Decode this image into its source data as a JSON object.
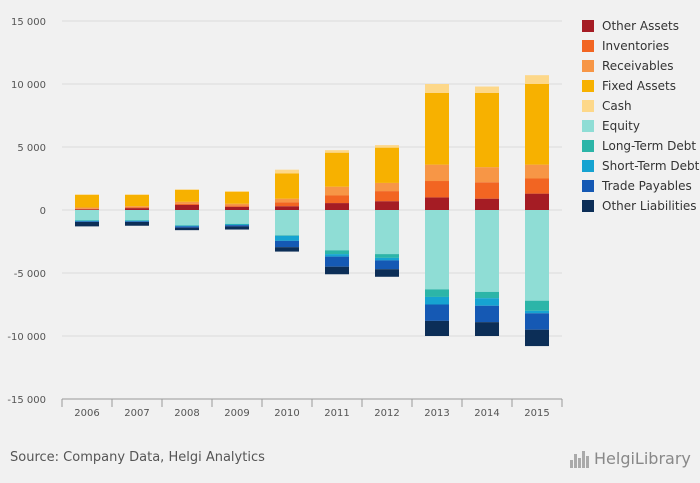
{
  "chart_data": {
    "type": "bar",
    "stacked": true,
    "categories": [
      "2006",
      "2007",
      "2008",
      "2009",
      "2010",
      "2011",
      "2012",
      "2013",
      "2014",
      "2015"
    ],
    "ylim": [
      -15000,
      15000
    ],
    "yticks": [
      15000,
      10000,
      5000,
      0,
      -5000,
      -10000,
      -15000
    ],
    "ytick_labels": [
      "15 000",
      "10 000",
      "5 000",
      "0",
      "-5 000",
      "-10 000",
      "-15 000"
    ],
    "grid": true,
    "legend_position": "right",
    "series": [
      {
        "name": "Other Assets",
        "color": "#a51c24",
        "values": [
          50,
          150,
          400,
          250,
          300,
          550,
          700,
          1000,
          900,
          1300
        ]
      },
      {
        "name": "Inventories",
        "color": "#f26522",
        "values": [
          50,
          50,
          100,
          100,
          300,
          600,
          800,
          1300,
          1300,
          1200
        ]
      },
      {
        "name": "Receivables",
        "color": "#f79646",
        "values": [
          100,
          100,
          150,
          150,
          300,
          700,
          650,
          1300,
          1200,
          1100
        ]
      },
      {
        "name": "Fixed Assets",
        "color": "#f7b100",
        "values": [
          1000,
          900,
          950,
          950,
          2000,
          2700,
          2800,
          5700,
          5900,
          6400
        ]
      },
      {
        "name": "Cash",
        "color": "#fdd88a",
        "values": [
          50,
          50,
          50,
          50,
          300,
          200,
          200,
          700,
          500,
          700
        ]
      },
      {
        "name": "Equity",
        "color": "#8fddd5",
        "values": [
          -800,
          -800,
          -1200,
          -1100,
          -2000,
          -3200,
          -3500,
          -6300,
          -6500,
          -7200
        ]
      },
      {
        "name": "Long-Term Debt",
        "color": "#2cb5a8",
        "values": [
          -50,
          -50,
          -50,
          -50,
          -50,
          -300,
          -300,
          -600,
          -500,
          -800
        ]
      },
      {
        "name": "Short-Term Debt",
        "color": "#16a3d1",
        "values": [
          -50,
          -50,
          -50,
          -50,
          -400,
          -200,
          -200,
          -600,
          -600,
          -200
        ]
      },
      {
        "name": "Trade Payables",
        "color": "#1559b4",
        "values": [
          -50,
          -50,
          -100,
          -100,
          -500,
          -800,
          -700,
          -1300,
          -1300,
          -1300
        ]
      },
      {
        "name": "Other Liabilities",
        "color": "#0c2e57",
        "values": [
          -350,
          -300,
          -200,
          -250,
          -350,
          -600,
          -600,
          -1200,
          -1100,
          -1300
        ]
      }
    ]
  },
  "footer": {
    "source": "Source: Company Data, Helgi Analytics",
    "brand": "HelgiLibrary"
  }
}
